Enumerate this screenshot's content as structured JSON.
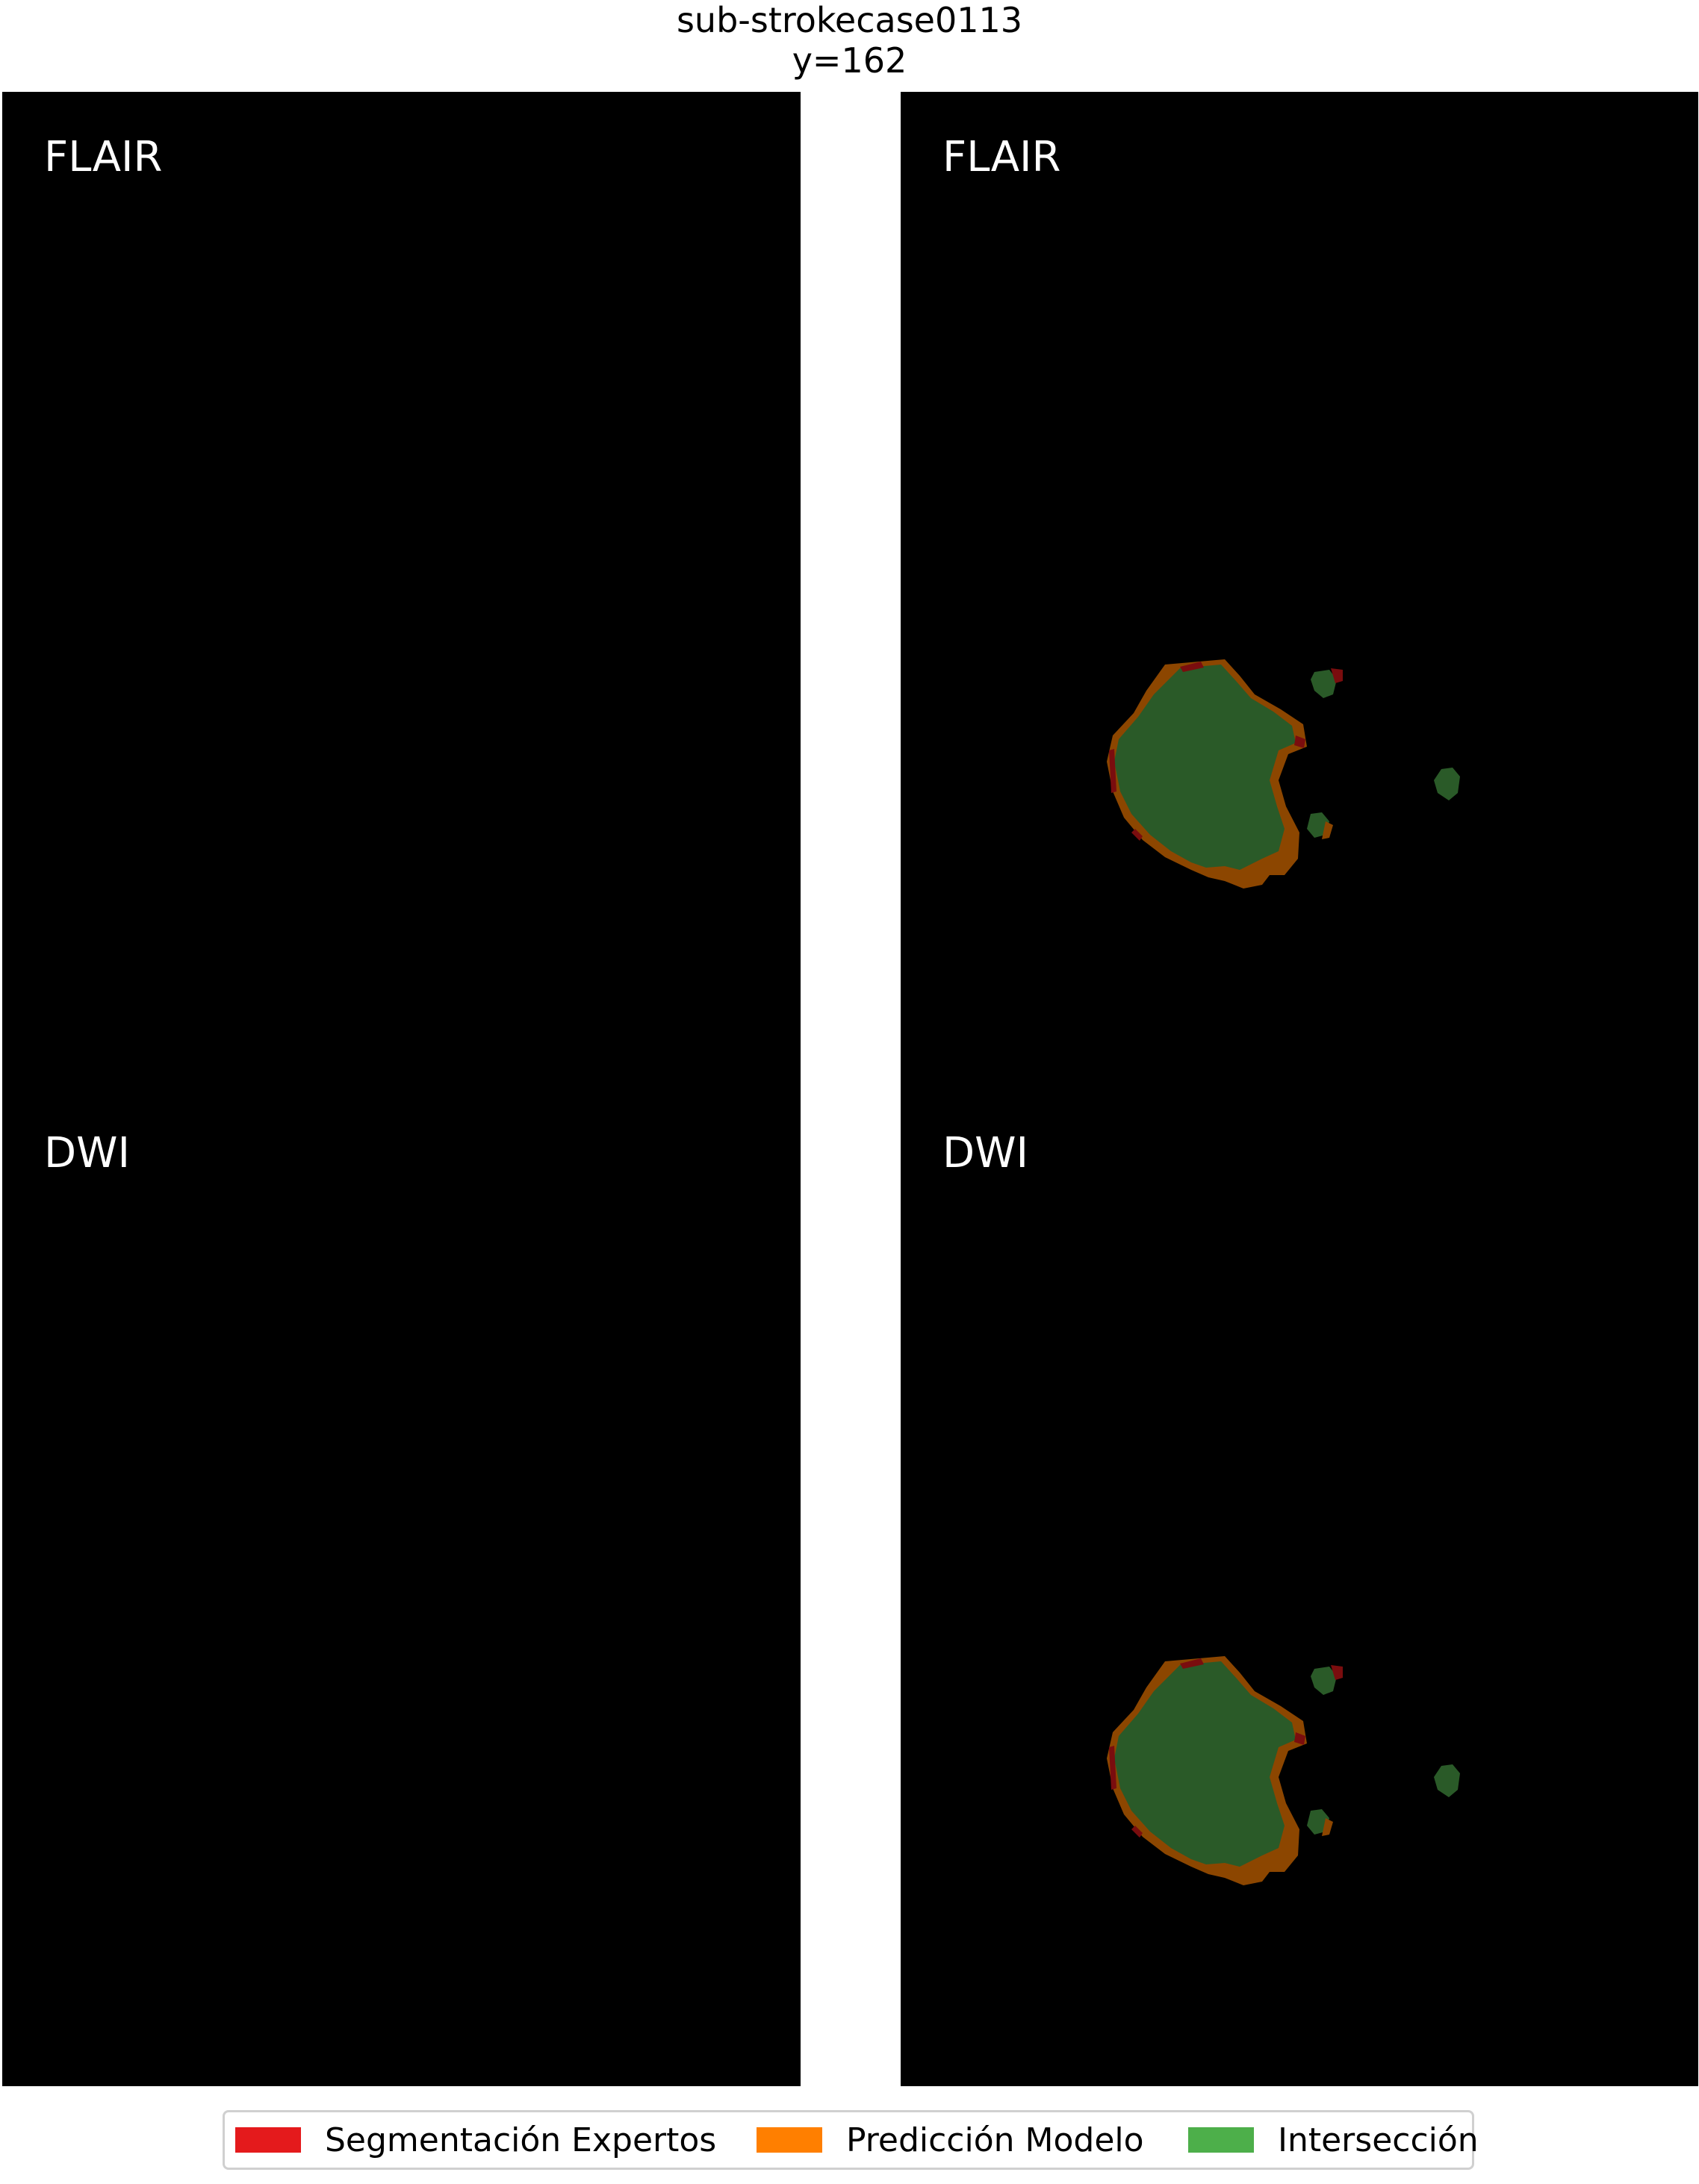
{
  "figure": {
    "title_line1": "sub-strokecase0113",
    "title_line2": "y=162"
  },
  "panels": [
    {
      "id": "flair-image",
      "label": "FLAIR",
      "overlay": false
    },
    {
      "id": "flair-overlay",
      "label": "FLAIR",
      "overlay": true
    },
    {
      "id": "dwi-image",
      "label": "DWI",
      "overlay": false
    },
    {
      "id": "dwi-overlay",
      "label": "DWI",
      "overlay": true
    }
  ],
  "legend": {
    "items": [
      {
        "label": "Segmentación Expertos",
        "color": "#e41a1c"
      },
      {
        "label": "Predicción Modelo",
        "color": "#ff7f00"
      },
      {
        "label": "Intersección",
        "color": "#4daf4a"
      }
    ]
  },
  "overlay_colors": {
    "expert_only": "#7a0d0e",
    "model_only": "#8c4600",
    "intersection": "#2a5a28"
  }
}
